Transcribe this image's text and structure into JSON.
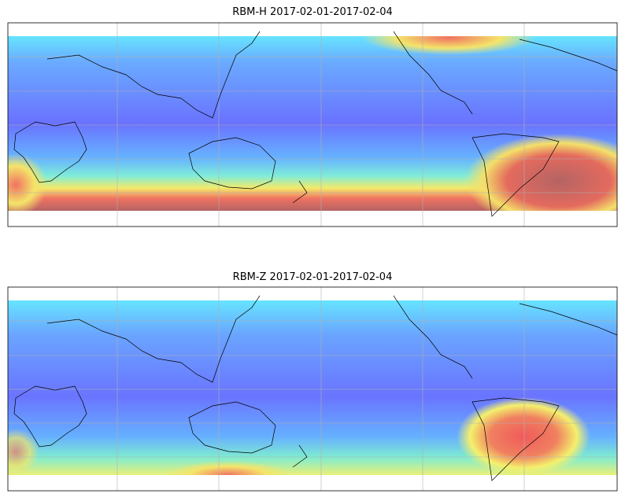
{
  "maps": [
    {
      "title": "RBM-H 2017-02-01-2017-02-04"
    },
    {
      "title": "RBM-Z 2017-02-01-2017-02-04"
    }
  ]
}
